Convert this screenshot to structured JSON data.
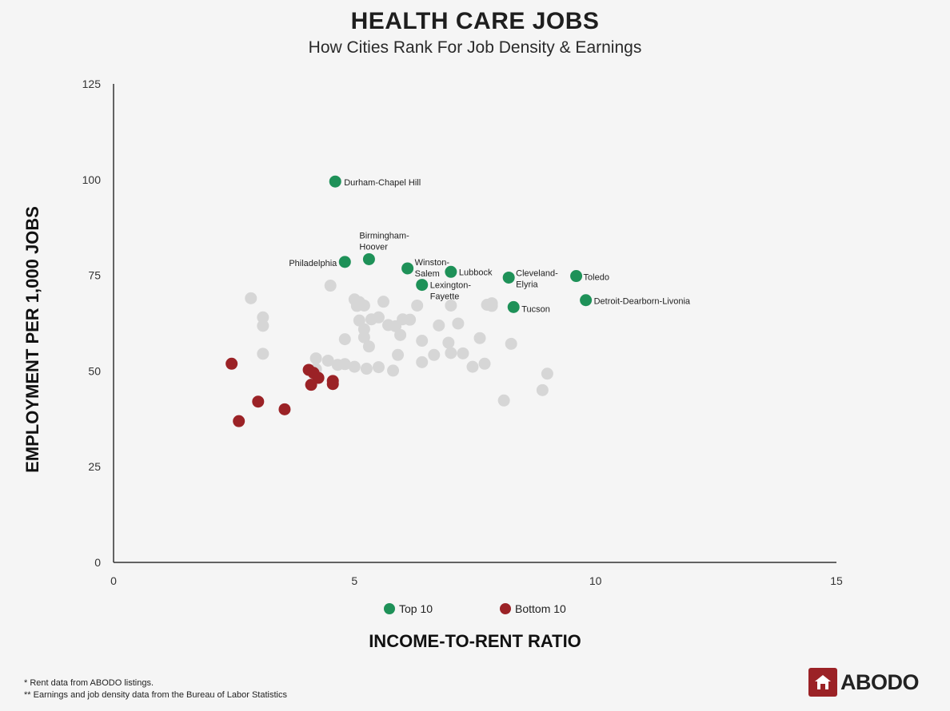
{
  "title": "HEALTH CARE JOBS",
  "subtitle": "How Cities Rank For Job Density & Earnings",
  "legend": {
    "top": "Top 10",
    "bottom": "Bottom 10"
  },
  "footnotes": [
    "* Rent data from ABODO listings.",
    "** Earnings and job density data from the Bureau of Labor Statistics"
  ],
  "brand": {
    "name": "ABODO",
    "logo_icon": "house-icon",
    "color": "#9b2226"
  },
  "colors": {
    "top": "#1e9158",
    "bottom": "#9b2226",
    "other": "#d6d6d6"
  },
  "chart_data": {
    "type": "scatter",
    "xlabel": "INCOME-TO-RENT RATIO",
    "ylabel": "EMPLOYMENT PER 1,000 JOBS",
    "xlim": [
      0,
      15
    ],
    "ylim": [
      0,
      125
    ],
    "xticks": [
      0,
      5,
      10,
      15
    ],
    "yticks": [
      0,
      25,
      50,
      75,
      100,
      125
    ],
    "grid": false,
    "legend_position": "bottom",
    "series": [
      {
        "name": "Top 10",
        "points": [
          {
            "x": 4.6,
            "y": 99.5,
            "label": "Durham-Chapel Hill"
          },
          {
            "x": 4.8,
            "y": 78.5,
            "label": "Philadelphia"
          },
          {
            "x": 5.3,
            "y": 79.2,
            "label": "Birmingham-Hoover"
          },
          {
            "x": 6.1,
            "y": 76.8,
            "label": "Winston-Salem"
          },
          {
            "x": 7.0,
            "y": 75.9,
            "label": "Lubbock"
          },
          {
            "x": 6.4,
            "y": 72.5,
            "label": "Lexington-Fayette"
          },
          {
            "x": 8.2,
            "y": 74.4,
            "label": "Cleveland-Elyria"
          },
          {
            "x": 9.6,
            "y": 74.8,
            "label": "Toledo"
          },
          {
            "x": 9.8,
            "y": 68.5,
            "label": "Detroit-Dearborn-Livonia"
          },
          {
            "x": 8.3,
            "y": 66.7,
            "label": "Tucson"
          }
        ]
      },
      {
        "name": "Bottom 10",
        "points": [
          {
            "x": 2.45,
            "y": 51.9
          },
          {
            "x": 3.0,
            "y": 42.0
          },
          {
            "x": 2.6,
            "y": 36.9
          },
          {
            "x": 3.55,
            "y": 40.0
          },
          {
            "x": 4.05,
            "y": 50.3
          },
          {
            "x": 4.15,
            "y": 49.5
          },
          {
            "x": 4.25,
            "y": 48.2
          },
          {
            "x": 4.1,
            "y": 46.4
          },
          {
            "x": 4.55,
            "y": 47.4
          },
          {
            "x": 4.55,
            "y": 46.6
          }
        ]
      },
      {
        "points": [
          {
            "x": 2.85,
            "y": 69.0
          },
          {
            "x": 3.1,
            "y": 64.0
          },
          {
            "x": 3.1,
            "y": 61.8
          },
          {
            "x": 3.1,
            "y": 54.5
          },
          {
            "x": 4.5,
            "y": 72.3
          },
          {
            "x": 4.2,
            "y": 53.3
          },
          {
            "x": 4.45,
            "y": 52.7
          },
          {
            "x": 4.65,
            "y": 51.6
          },
          {
            "x": 4.8,
            "y": 51.8
          },
          {
            "x": 4.8,
            "y": 58.3
          },
          {
            "x": 4.2,
            "y": 50.5
          },
          {
            "x": 5.0,
            "y": 68.7
          },
          {
            "x": 5.1,
            "y": 68.0
          },
          {
            "x": 5.2,
            "y": 67.1
          },
          {
            "x": 5.05,
            "y": 67.0
          },
          {
            "x": 5.6,
            "y": 68.1
          },
          {
            "x": 5.1,
            "y": 63.2
          },
          {
            "x": 5.35,
            "y": 63.5
          },
          {
            "x": 5.5,
            "y": 64.0
          },
          {
            "x": 5.2,
            "y": 60.9
          },
          {
            "x": 5.2,
            "y": 58.8
          },
          {
            "x": 5.3,
            "y": 56.4
          },
          {
            "x": 5.0,
            "y": 51.1
          },
          {
            "x": 5.25,
            "y": 50.6
          },
          {
            "x": 5.5,
            "y": 51.0
          },
          {
            "x": 5.7,
            "y": 62.0
          },
          {
            "x": 5.85,
            "y": 61.7
          },
          {
            "x": 5.95,
            "y": 59.4
          },
          {
            "x": 6.0,
            "y": 63.5
          },
          {
            "x": 6.15,
            "y": 63.4
          },
          {
            "x": 5.9,
            "y": 54.2
          },
          {
            "x": 5.8,
            "y": 50.1
          },
          {
            "x": 6.3,
            "y": 67.1
          },
          {
            "x": 6.4,
            "y": 57.9
          },
          {
            "x": 6.4,
            "y": 52.3
          },
          {
            "x": 6.65,
            "y": 54.2
          },
          {
            "x": 6.75,
            "y": 61.9
          },
          {
            "x": 7.0,
            "y": 67.1
          },
          {
            "x": 6.95,
            "y": 57.4
          },
          {
            "x": 7.0,
            "y": 54.7
          },
          {
            "x": 7.15,
            "y": 62.4
          },
          {
            "x": 7.25,
            "y": 54.6
          },
          {
            "x": 7.45,
            "y": 51.1
          },
          {
            "x": 7.6,
            "y": 58.6
          },
          {
            "x": 7.7,
            "y": 51.9
          },
          {
            "x": 7.75,
            "y": 67.3
          },
          {
            "x": 7.85,
            "y": 67.7
          },
          {
            "x": 7.85,
            "y": 67.0
          },
          {
            "x": 8.25,
            "y": 57.1
          },
          {
            "x": 8.1,
            "y": 42.3
          },
          {
            "x": 8.9,
            "y": 45.0
          },
          {
            "x": 9.0,
            "y": 49.3
          }
        ]
      }
    ]
  }
}
